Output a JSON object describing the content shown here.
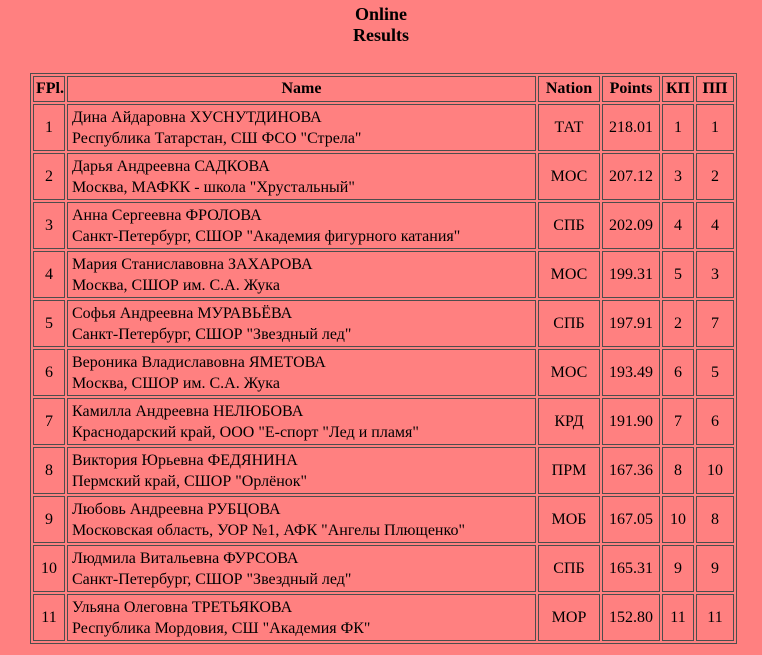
{
  "page": {
    "background_color": "#FF8080",
    "border_color": "#4d4d4d",
    "text_color": "#000000"
  },
  "title": {
    "line1": "Online",
    "line2": "Results"
  },
  "table": {
    "headers": {
      "fpl": "FPl.",
      "name": "Name",
      "nation": "Nation",
      "points": "Points",
      "kp": "КП",
      "pp": "ПП"
    },
    "rows": [
      {
        "fpl": "1",
        "name": "Дина Айдаровна ХУСНУТДИНОВА",
        "club": "Республика Татарстан, СШ ФСО \"Стрела\"",
        "nation": "ТАТ",
        "points": "218.01",
        "kp": "1",
        "pp": "1"
      },
      {
        "fpl": "2",
        "name": "Дарья Андреевна САДКОВА",
        "club": "Москва, МАФКК - школа \"Хрустальный\"",
        "nation": "МОС",
        "points": "207.12",
        "kp": "3",
        "pp": "2"
      },
      {
        "fpl": "3",
        "name": "Анна Сергеевна ФРОЛОВА",
        "club": "Санкт-Петербург, СШОР \"Академия фигурного катания\"",
        "nation": "СПБ",
        "points": "202.09",
        "kp": "4",
        "pp": "4"
      },
      {
        "fpl": "4",
        "name": "Мария Станиславовна ЗАХАРОВА",
        "club": "Москва, СШОР им. С.А. Жука",
        "nation": "МОС",
        "points": "199.31",
        "kp": "5",
        "pp": "3"
      },
      {
        "fpl": "5",
        "name": "Софья Андреевна МУРАВЬЁВА",
        "club": "Санкт-Петербург, СШОР \"Звездный лед\"",
        "nation": "СПБ",
        "points": "197.91",
        "kp": "2",
        "pp": "7"
      },
      {
        "fpl": "6",
        "name": "Вероника Владиславовна ЯМЕТОВА",
        "club": "Москва, СШОР им. С.А. Жука",
        "nation": "МОС",
        "points": "193.49",
        "kp": "6",
        "pp": "5"
      },
      {
        "fpl": "7",
        "name": "Камилла Андреевна НЕЛЮБОВА",
        "club": "Краснодарский край, ООО \"Е-спорт \"Лед и пламя\"",
        "nation": "КРД",
        "points": "191.90",
        "kp": "7",
        "pp": "6"
      },
      {
        "fpl": "8",
        "name": "Виктория Юрьевна ФЕДЯНИНА",
        "club": "Пермский край, СШОР \"Орлёнок\"",
        "nation": "ПРМ",
        "points": "167.36",
        "kp": "8",
        "pp": "10"
      },
      {
        "fpl": "9",
        "name": "Любовь Андреевна РУБЦОВА",
        "club": "Московская область, УОР №1, АФК \"Ангелы Плющенко\"",
        "nation": "МОБ",
        "points": "167.05",
        "kp": "10",
        "pp": "8"
      },
      {
        "fpl": "10",
        "name": "Людмила Витальевна ФУРСОВА",
        "club": "Санкт-Петербург, СШОР \"Звездный лед\"",
        "nation": "СПБ",
        "points": "165.31",
        "kp": "9",
        "pp": "9"
      },
      {
        "fpl": "11",
        "name": "Ульяна Олеговна ТРЕТЬЯКОВА",
        "club": "Республика Мордовия, СШ \"Академия ФК\"",
        "nation": "МОР",
        "points": "152.80",
        "kp": "11",
        "pp": "11"
      }
    ]
  }
}
